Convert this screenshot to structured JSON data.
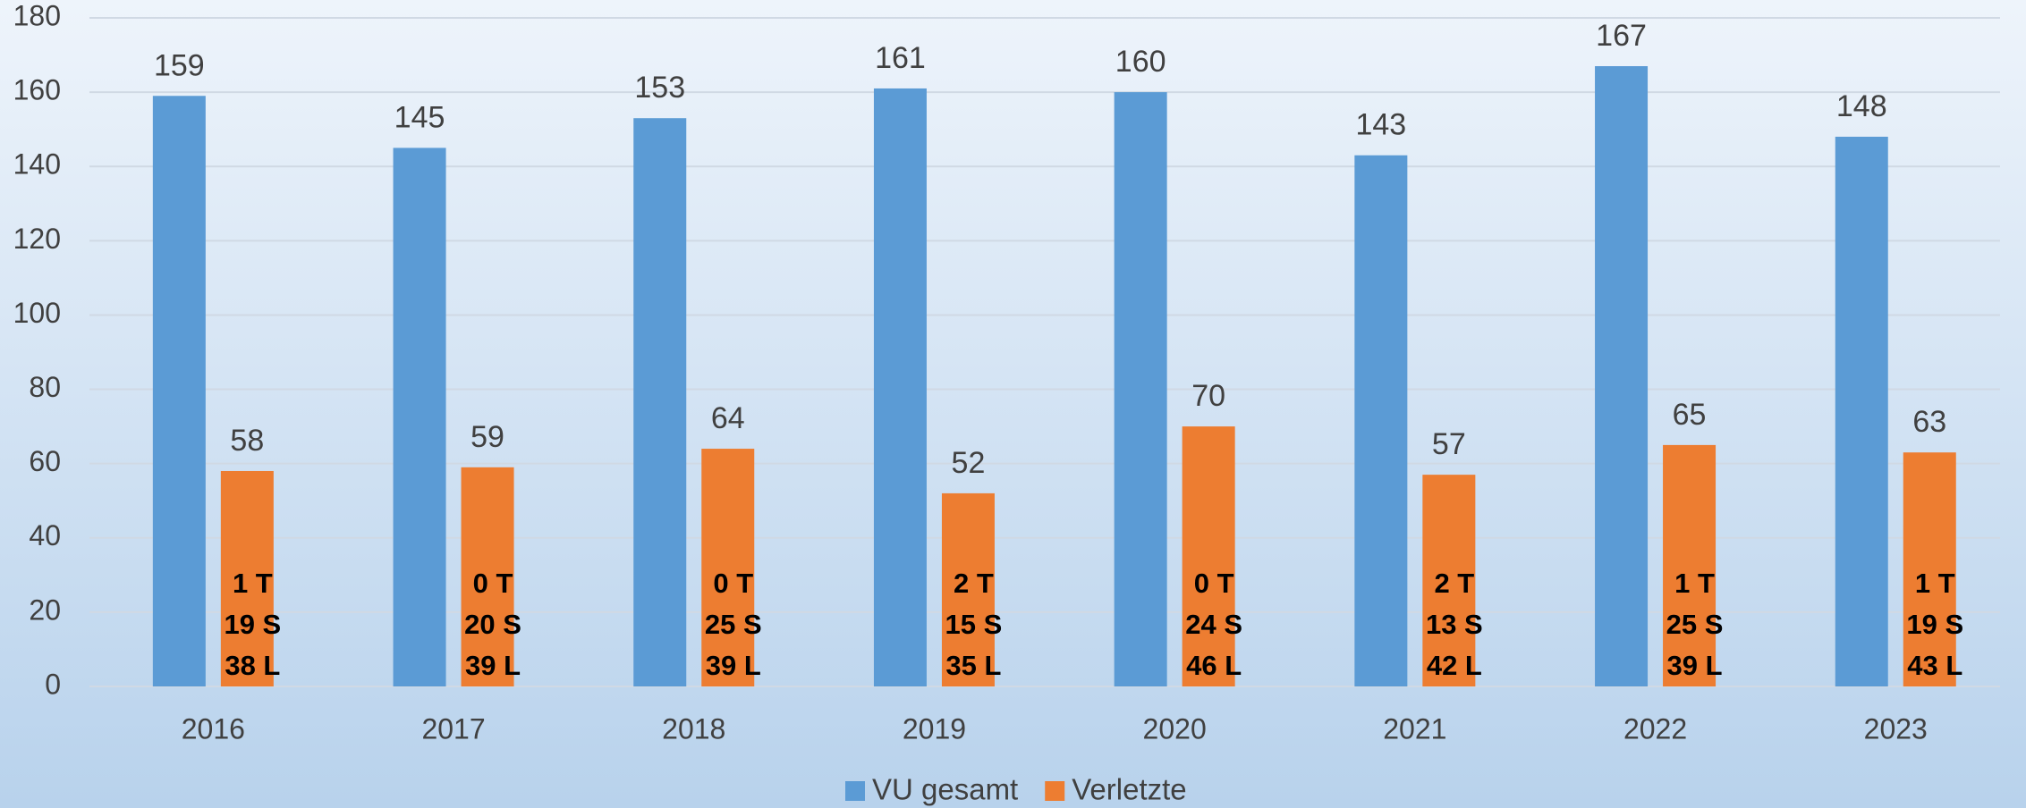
{
  "chart_data": {
    "type": "bar",
    "categories": [
      "2016",
      "2017",
      "2018",
      "2019",
      "2020",
      "2021",
      "2022",
      "2023"
    ],
    "series": [
      {
        "name": "VU gesamt",
        "color": "#5b9bd5",
        "values": [
          159,
          145,
          153,
          161,
          160,
          143,
          167,
          148
        ]
      },
      {
        "name": "Verletzte",
        "color": "#ed7d31",
        "values": [
          58,
          59,
          64,
          52,
          70,
          57,
          65,
          63
        ]
      }
    ],
    "annotations": [
      [
        "1 T",
        "19 S",
        "38 L"
      ],
      [
        "0 T",
        "20 S",
        "39 L"
      ],
      [
        "0 T",
        "25 S",
        "39 L"
      ],
      [
        "2 T",
        "15 S",
        "35 L"
      ],
      [
        "0 T",
        "24 S",
        "46 L"
      ],
      [
        "2 T",
        "13 S",
        "42 L"
      ],
      [
        "1 T",
        "25 S",
        "39 L"
      ],
      [
        "1 T",
        "19 S",
        "43 L"
      ]
    ],
    "ylim": [
      0,
      180
    ],
    "yticks": [
      0,
      20,
      40,
      60,
      80,
      100,
      120,
      140,
      160,
      180
    ],
    "grid": true,
    "legend": "bottom"
  }
}
